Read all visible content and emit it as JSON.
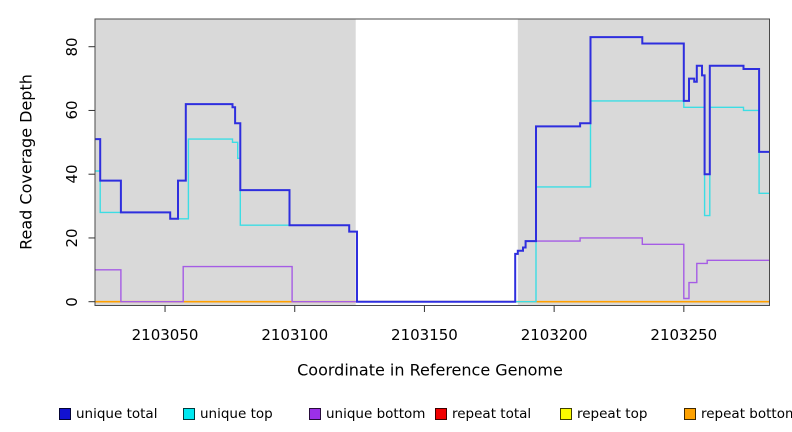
{
  "axes": {
    "x_label": "Coordinate in Reference Genome",
    "y_label": "Read Coverage Depth"
  },
  "legend": {
    "items": [
      {
        "label": "unique total",
        "color": "#1212d0"
      },
      {
        "label": "unique top",
        "color": "#00e8f0"
      },
      {
        "label": "unique bottom",
        "color": "#9b30e8"
      },
      {
        "label": "repeat total",
        "color": "#f00000"
      },
      {
        "label": "repeat top",
        "color": "#fafa00"
      },
      {
        "label": "repeat bottom",
        "color": "#ffa200"
      }
    ]
  },
  "chart_data": {
    "type": "line",
    "subtype": "step-coverage",
    "title": "",
    "xlabel": "Coordinate in Reference Genome",
    "ylabel": "Read Coverage Depth",
    "x_domain": [
      2103023,
      2103283
    ],
    "y_domain": [
      0,
      88
    ],
    "x_ticks": [
      2103050,
      2103100,
      2103150,
      2103200,
      2103250
    ],
    "y_ticks": [
      0,
      20,
      40,
      60,
      80
    ],
    "grid": false,
    "legend_position": "bottom",
    "plot_background": "#d9d9d9",
    "masked_region": {
      "x_start": 2103123.5,
      "x_end": 2103186,
      "color": "#ffffff"
    },
    "series": [
      {
        "name": "repeat total",
        "color": "#e00000",
        "line_width": 1.2,
        "steps": [
          [
            2103023,
            0
          ]
        ]
      },
      {
        "name": "repeat top",
        "color": "#f5f500",
        "line_width": 1.2,
        "steps": [
          [
            2103023,
            0
          ]
        ]
      },
      {
        "name": "repeat bottom",
        "color": "#ffa000",
        "line_width": 1.7,
        "steps": [
          [
            2103023,
            0
          ]
        ]
      },
      {
        "name": "unique bottom",
        "color": "#a55ce5",
        "line_width": 1.4,
        "steps": [
          [
            2103023,
            10
          ],
          [
            2103033,
            0
          ],
          [
            2103057,
            11
          ],
          [
            2103099,
            0
          ],
          [
            2103185,
            15
          ],
          [
            2103186,
            16
          ],
          [
            2103188,
            17
          ],
          [
            2103189,
            19
          ],
          [
            2103210,
            20
          ],
          [
            2103234,
            18
          ],
          [
            2103250,
            1
          ],
          [
            2103252,
            6
          ],
          [
            2103255,
            12
          ],
          [
            2103259,
            13
          ]
        ]
      },
      {
        "name": "unique top",
        "color": "#3cdde4",
        "line_width": 1.4,
        "steps": [
          [
            2103023,
            41
          ],
          [
            2103025,
            28
          ],
          [
            2103052,
            26
          ],
          [
            2103059,
            51
          ],
          [
            2103076,
            50
          ],
          [
            2103078,
            45
          ],
          [
            2103079,
            24
          ],
          [
            2103121,
            22
          ],
          [
            2103124,
            0
          ],
          [
            2103193,
            36
          ],
          [
            2103214,
            63
          ],
          [
            2103250,
            61
          ],
          [
            2103258,
            27
          ],
          [
            2103260,
            61
          ],
          [
            2103273,
            60
          ],
          [
            2103279,
            34
          ]
        ]
      },
      {
        "name": "unique total",
        "color": "#2e2ede",
        "line_width": 2,
        "steps": [
          [
            2103023,
            51
          ],
          [
            2103025,
            38
          ],
          [
            2103033,
            28
          ],
          [
            2103052,
            26
          ],
          [
            2103055,
            38
          ],
          [
            2103058,
            62
          ],
          [
            2103076,
            61
          ],
          [
            2103077,
            56
          ],
          [
            2103079,
            35
          ],
          [
            2103098,
            24
          ],
          [
            2103121,
            22
          ],
          [
            2103124,
            0
          ],
          [
            2103185,
            15
          ],
          [
            2103186,
            16
          ],
          [
            2103188,
            17
          ],
          [
            2103189,
            19
          ],
          [
            2103193,
            55
          ],
          [
            2103210,
            56
          ],
          [
            2103214,
            83
          ],
          [
            2103234,
            81
          ],
          [
            2103250,
            63
          ],
          [
            2103252,
            70
          ],
          [
            2103254,
            69
          ],
          [
            2103255,
            74
          ],
          [
            2103257,
            71
          ],
          [
            2103258,
            40
          ],
          [
            2103260,
            74
          ],
          [
            2103273,
            73
          ],
          [
            2103279,
            47
          ]
        ]
      }
    ]
  }
}
